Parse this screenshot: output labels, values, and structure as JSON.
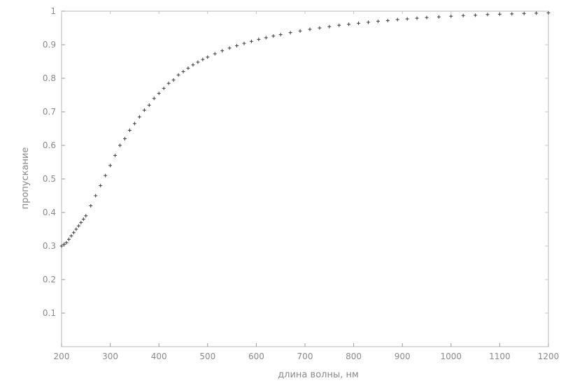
{
  "chart_data": {
    "type": "scatter",
    "xlabel": "длина волны, нм",
    "ylabel": "пропускание",
    "xlim": [
      200,
      1200
    ],
    "ylim": [
      0,
      1
    ],
    "x_ticks": [
      200,
      300,
      400,
      500,
      600,
      700,
      800,
      900,
      1000,
      1100,
      1200
    ],
    "x_tick_labels": [
      "200",
      "300",
      "400",
      "500",
      "600",
      "700",
      "800",
      "900",
      "1000",
      "1100",
      "1200"
    ],
    "y_ticks": [
      0.1,
      0.2,
      0.3,
      0.4,
      0.5,
      0.6,
      0.7,
      0.8,
      0.9,
      1
    ],
    "y_tick_labels": [
      "0.1",
      "0.2",
      "0.3",
      "0.4",
      "0.5",
      "0.6",
      "0.7",
      "0.8",
      "0.9",
      "1"
    ],
    "grid": false,
    "marker": "+",
    "series": [
      {
        "x": [
          200,
          205,
          210,
          215,
          220,
          225,
          230,
          235,
          240,
          245,
          250,
          260,
          270,
          280,
          290,
          300,
          310,
          320,
          330,
          340,
          350,
          360,
          370,
          380,
          390,
          400,
          410,
          420,
          430,
          440,
          450,
          460,
          470,
          480,
          490,
          500,
          515,
          530,
          545,
          560,
          575,
          590,
          605,
          620,
          635,
          650,
          670,
          690,
          710,
          730,
          750,
          770,
          790,
          810,
          830,
          850,
          870,
          890,
          910,
          930,
          950,
          975,
          1000,
          1025,
          1050,
          1075,
          1100,
          1125,
          1150,
          1175,
          1200
        ],
        "y": [
          0.3,
          0.305,
          0.31,
          0.32,
          0.33,
          0.34,
          0.35,
          0.36,
          0.37,
          0.38,
          0.39,
          0.42,
          0.45,
          0.48,
          0.51,
          0.54,
          0.57,
          0.6,
          0.62,
          0.645,
          0.665,
          0.685,
          0.705,
          0.72,
          0.74,
          0.755,
          0.77,
          0.785,
          0.795,
          0.81,
          0.82,
          0.83,
          0.84,
          0.848,
          0.856,
          0.863,
          0.873,
          0.882,
          0.89,
          0.897,
          0.904,
          0.91,
          0.916,
          0.921,
          0.926,
          0.93,
          0.936,
          0.941,
          0.946,
          0.95,
          0.954,
          0.958,
          0.961,
          0.964,
          0.967,
          0.97,
          0.972,
          0.975,
          0.977,
          0.979,
          0.981,
          0.983,
          0.985,
          0.987,
          0.988,
          0.99,
          0.991,
          0.992,
          0.993,
          0.994,
          0.995
        ]
      }
    ]
  }
}
